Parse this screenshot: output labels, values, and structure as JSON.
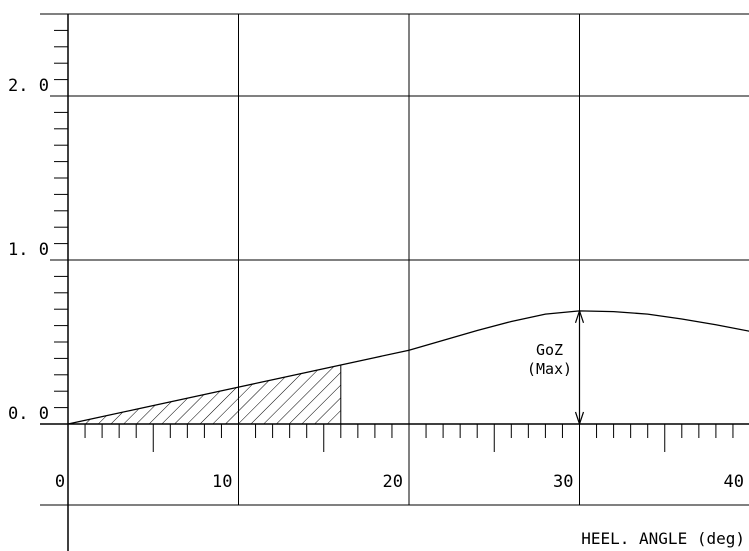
{
  "chart_data": {
    "type": "line",
    "title": "",
    "xlabel": "HEEL. ANGLE (deg)",
    "ylabel": "",
    "xlim": [
      0,
      40
    ],
    "ylim": [
      0,
      2.5
    ],
    "x_ticks": [
      "0",
      "10",
      "20",
      "30",
      "40"
    ],
    "y_ticks": [
      "0. 0",
      "1. 0",
      "2. 0"
    ],
    "grid": true,
    "series": [
      {
        "x": [
          0,
          2,
          4,
          6,
          8,
          10,
          12,
          14,
          16,
          18,
          20,
          22,
          24,
          26,
          28,
          30,
          32,
          34,
          36,
          38,
          40
        ],
        "y": [
          0.0,
          0.045,
          0.09,
          0.135,
          0.18,
          0.225,
          0.27,
          0.315,
          0.36,
          0.405,
          0.45,
          0.51,
          0.57,
          0.625,
          0.67,
          0.69,
          0.685,
          0.67,
          0.64,
          0.605,
          0.565
        ]
      }
    ],
    "shaded_region": {
      "x_from": 0,
      "x_to": 16,
      "pattern": "hatch"
    },
    "annotations": [
      {
        "text_line1": "GoZ",
        "text_line2": "(Max)",
        "x": 30,
        "y_from": 0,
        "y_to": 0.69
      }
    ],
    "colors": {
      "line": "#000000",
      "background": "#ffffff"
    }
  }
}
